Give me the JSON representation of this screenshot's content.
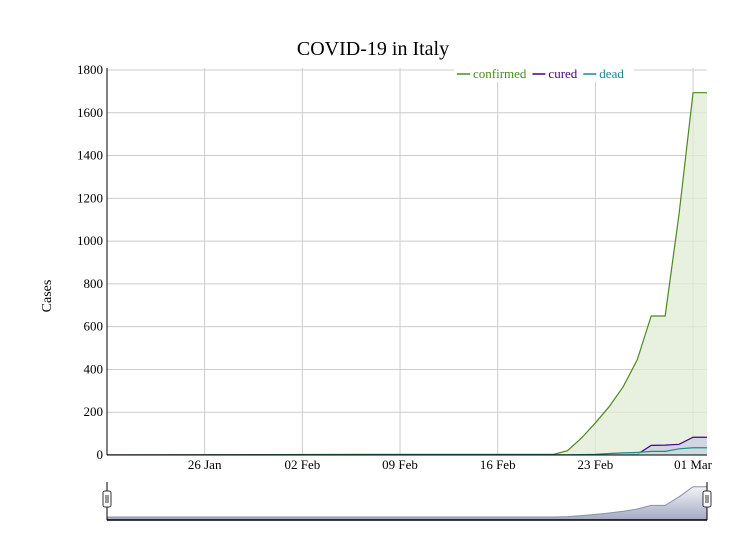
{
  "chart_data": {
    "type": "area",
    "title": "COVID-19 in Italy",
    "xlabel": "",
    "ylabel": "Cases",
    "ylim": [
      0,
      1800
    ],
    "xlim": [
      "2020-01-19",
      "2020-03-02"
    ],
    "y_ticks": [
      0,
      200,
      400,
      600,
      800,
      1000,
      1200,
      1400,
      1600,
      1800
    ],
    "x_ticks": [
      {
        "date": "2020-01-26",
        "label": "26 Jan"
      },
      {
        "date": "2020-02-02",
        "label": "02 Feb"
      },
      {
        "date": "2020-02-09",
        "label": "09 Feb"
      },
      {
        "date": "2020-02-16",
        "label": "16 Feb"
      },
      {
        "date": "2020-02-23",
        "label": "23 Feb"
      },
      {
        "date": "2020-03-01",
        "label": "01 Mar"
      }
    ],
    "grid": true,
    "legend_position": "top-right",
    "series": [
      {
        "name": "confirmed",
        "color": "#4d8a1e",
        "fill": "#e0ebd4",
        "points": [
          [
            "2020-01-19",
            0
          ],
          [
            "2020-01-30",
            2
          ],
          [
            "2020-02-07",
            3
          ],
          [
            "2020-02-20",
            3
          ],
          [
            "2020-02-21",
            20
          ],
          [
            "2020-02-22",
            79
          ],
          [
            "2020-02-23",
            150
          ],
          [
            "2020-02-24",
            227
          ],
          [
            "2020-02-25",
            320
          ],
          [
            "2020-02-26",
            445
          ],
          [
            "2020-02-27",
            650
          ],
          [
            "2020-02-28",
            650
          ],
          [
            "2020-02-29",
            1128
          ],
          [
            "2020-03-01",
            1694
          ],
          [
            "2020-03-02",
            1694
          ]
        ]
      },
      {
        "name": "cured",
        "color": "#4b0082",
        "fill": "#c9cfe0",
        "points": [
          [
            "2020-01-19",
            0
          ],
          [
            "2020-02-23",
            0
          ],
          [
            "2020-02-24",
            1
          ],
          [
            "2020-02-25",
            1
          ],
          [
            "2020-02-26",
            3
          ],
          [
            "2020-02-27",
            45
          ],
          [
            "2020-02-28",
            46
          ],
          [
            "2020-02-29",
            50
          ],
          [
            "2020-03-01",
            83
          ],
          [
            "2020-03-02",
            83
          ]
        ]
      },
      {
        "name": "dead",
        "color": "#1e8a8a",
        "fill": "#c7dede",
        "points": [
          [
            "2020-01-19",
            0
          ],
          [
            "2020-02-21",
            1
          ],
          [
            "2020-02-22",
            2
          ],
          [
            "2020-02-23",
            3
          ],
          [
            "2020-02-24",
            7
          ],
          [
            "2020-02-25",
            10
          ],
          [
            "2020-02-26",
            12
          ],
          [
            "2020-02-27",
            17
          ],
          [
            "2020-02-28",
            17
          ],
          [
            "2020-02-29",
            29
          ],
          [
            "2020-03-01",
            34
          ],
          [
            "2020-03-02",
            34
          ]
        ]
      }
    ],
    "range_selector": {
      "start": "2020-01-19",
      "end": "2020-03-02"
    }
  }
}
